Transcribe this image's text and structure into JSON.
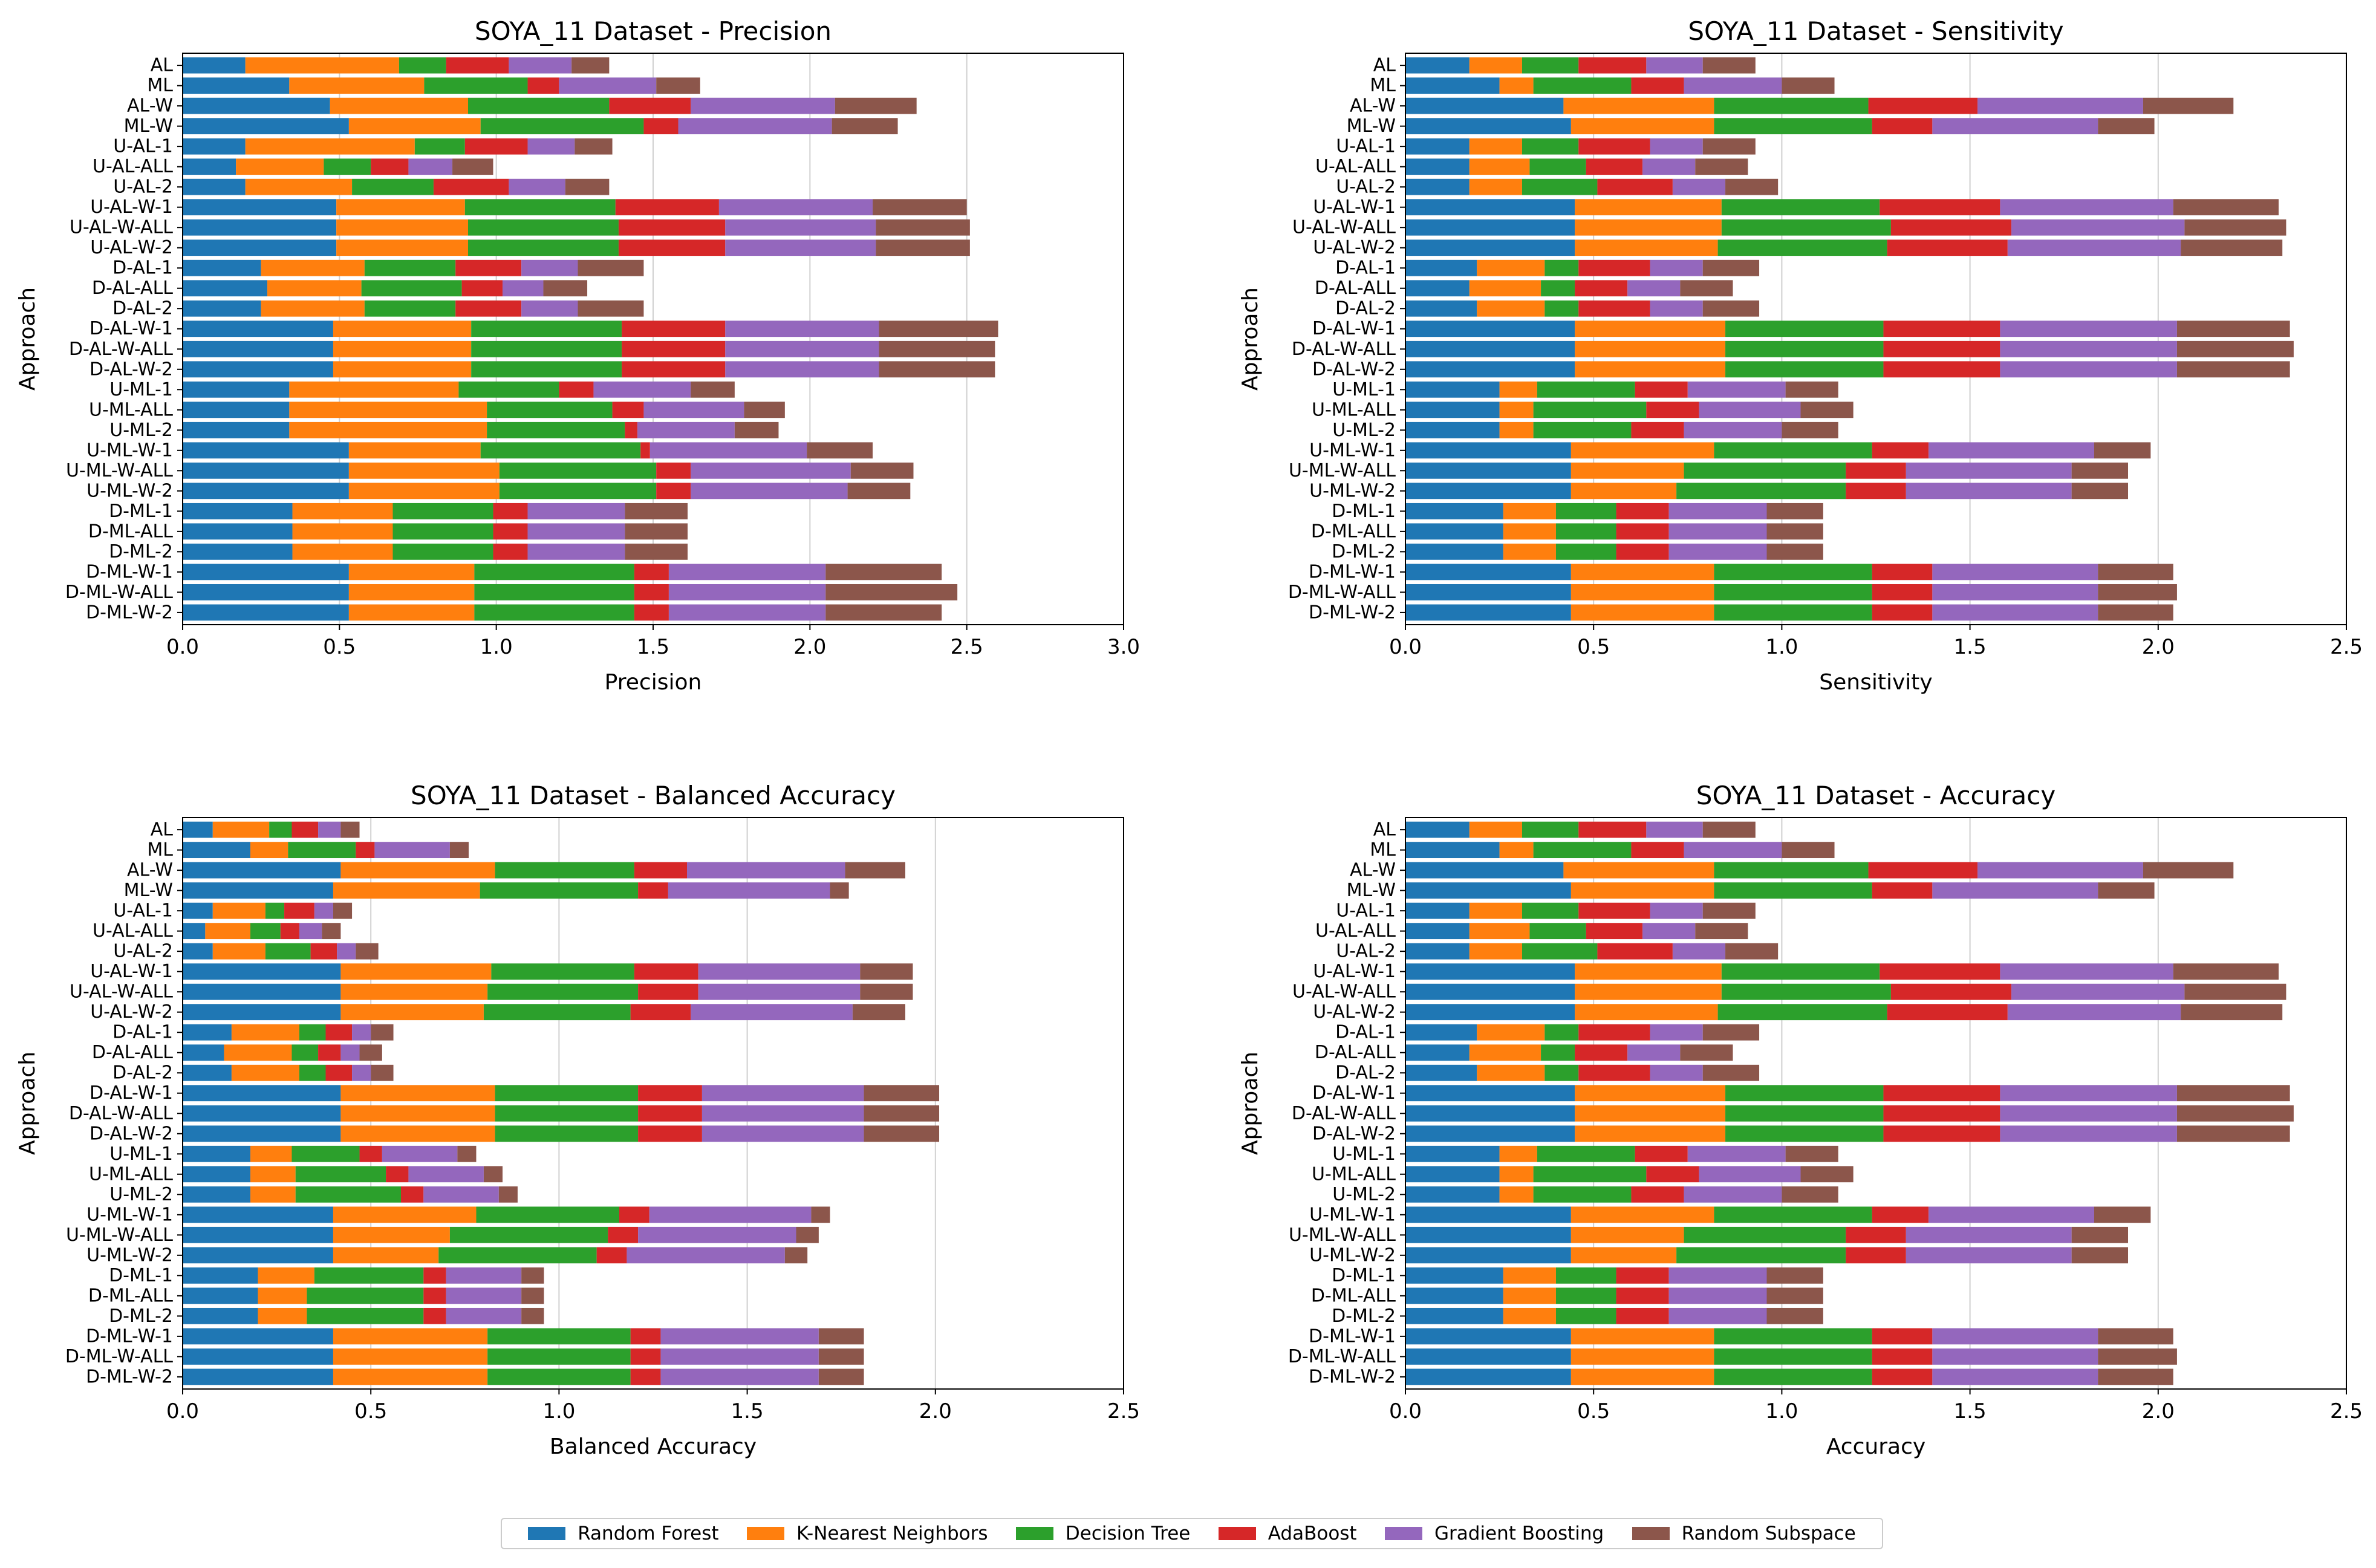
{
  "figure": {
    "categories": [
      "D-ML-W-2",
      "D-ML-W-ALL",
      "D-ML-W-1",
      "D-ML-2",
      "D-ML-ALL",
      "D-ML-1",
      "U-ML-W-2",
      "U-ML-W-ALL",
      "U-ML-W-1",
      "U-ML-2",
      "U-ML-ALL",
      "U-ML-1",
      "D-AL-W-2",
      "D-AL-W-ALL",
      "D-AL-W-1",
      "D-AL-2",
      "D-AL-ALL",
      "D-AL-1",
      "U-AL-W-2",
      "U-AL-W-ALL",
      "U-AL-W-1",
      "U-AL-2",
      "U-AL-ALL",
      "U-AL-1",
      "ML-W",
      "AL-W",
      "ML",
      "AL"
    ],
    "series_names": [
      "Random Forest",
      "K-Nearest Neighbors",
      "Decision Tree",
      "AdaBoost",
      "Gradient Boosting",
      "Random Subspace"
    ],
    "colors": [
      "#1f77b4",
      "#ff7f0e",
      "#2ca02c",
      "#d62728",
      "#9467bd",
      "#8c564b"
    ]
  },
  "chart_data": [
    {
      "type": "bar",
      "orientation": "horizontal",
      "stacked": true,
      "title": "SOYA_11 Dataset - Precision",
      "xlabel": "Precision",
      "ylabel": "Approach",
      "xlim": [
        0,
        3.0
      ],
      "xticks": [
        0,
        0.5,
        1.0,
        1.5,
        2.0,
        2.5,
        3.0
      ],
      "xtick_labels": [
        "0.0",
        "0.5",
        "1.0",
        "1.5",
        "2.0",
        "2.5",
        "3.0"
      ],
      "grid": "x",
      "series": [
        {
          "name": "Random Forest",
          "values": [
            0.53,
            0.53,
            0.53,
            0.35,
            0.35,
            0.35,
            0.53,
            0.53,
            0.53,
            0.34,
            0.34,
            0.34,
            0.48,
            0.48,
            0.48,
            0.25,
            0.27,
            0.25,
            0.49,
            0.49,
            0.49,
            0.2,
            0.17,
            0.2,
            0.53,
            0.47,
            0.34,
            0.2
          ]
        },
        {
          "name": "K-Nearest Neighbors",
          "values": [
            0.4,
            0.4,
            0.4,
            0.32,
            0.32,
            0.32,
            0.48,
            0.48,
            0.42,
            0.63,
            0.63,
            0.54,
            0.44,
            0.44,
            0.44,
            0.33,
            0.3,
            0.33,
            0.42,
            0.42,
            0.41,
            0.34,
            0.28,
            0.54,
            0.42,
            0.44,
            0.43,
            0.49
          ]
        },
        {
          "name": "Decision Tree",
          "values": [
            0.51,
            0.51,
            0.51,
            0.32,
            0.32,
            0.32,
            0.5,
            0.5,
            0.51,
            0.44,
            0.4,
            0.32,
            0.48,
            0.48,
            0.48,
            0.29,
            0.32,
            0.29,
            0.48,
            0.48,
            0.48,
            0.26,
            0.15,
            0.16,
            0.52,
            0.45,
            0.33,
            0.15
          ]
        },
        {
          "name": "AdaBoost",
          "values": [
            0.11,
            0.11,
            0.11,
            0.11,
            0.11,
            0.11,
            0.11,
            0.11,
            0.03,
            0.04,
            0.1,
            0.11,
            0.33,
            0.33,
            0.33,
            0.21,
            0.13,
            0.21,
            0.34,
            0.34,
            0.33,
            0.24,
            0.12,
            0.2,
            0.11,
            0.26,
            0.1,
            0.2
          ]
        },
        {
          "name": "Gradient Boosting",
          "values": [
            0.5,
            0.5,
            0.5,
            0.31,
            0.31,
            0.31,
            0.5,
            0.51,
            0.5,
            0.31,
            0.32,
            0.31,
            0.49,
            0.49,
            0.49,
            0.18,
            0.13,
            0.18,
            0.48,
            0.48,
            0.49,
            0.18,
            0.14,
            0.15,
            0.49,
            0.46,
            0.31,
            0.2
          ]
        },
        {
          "name": "Random Subspace",
          "values": [
            0.37,
            0.42,
            0.37,
            0.2,
            0.2,
            0.2,
            0.2,
            0.2,
            0.21,
            0.14,
            0.13,
            0.14,
            0.37,
            0.37,
            0.38,
            0.21,
            0.14,
            0.21,
            0.3,
            0.3,
            0.3,
            0.14,
            0.13,
            0.12,
            0.21,
            0.26,
            0.14,
            0.12
          ]
        }
      ]
    },
    {
      "type": "bar",
      "orientation": "horizontal",
      "stacked": true,
      "title": "SOYA_11 Dataset - Sensitivity",
      "xlabel": "Sensitivity",
      "ylabel": "Approach",
      "xlim": [
        0,
        2.5
      ],
      "xticks": [
        0,
        0.5,
        1.0,
        1.5,
        2.0,
        2.5
      ],
      "xtick_labels": [
        "0.0",
        "0.5",
        "1.0",
        "1.5",
        "2.0",
        "2.5"
      ],
      "grid": "x",
      "series": [
        {
          "name": "Random Forest",
          "values": [
            0.44,
            0.44,
            0.44,
            0.26,
            0.26,
            0.26,
            0.44,
            0.44,
            0.44,
            0.25,
            0.25,
            0.25,
            0.45,
            0.45,
            0.45,
            0.19,
            0.17,
            0.19,
            0.45,
            0.45,
            0.45,
            0.17,
            0.17,
            0.17,
            0.44,
            0.42,
            0.25,
            0.17
          ]
        },
        {
          "name": "K-Nearest Neighbors",
          "values": [
            0.38,
            0.38,
            0.38,
            0.14,
            0.14,
            0.14,
            0.28,
            0.3,
            0.38,
            0.09,
            0.09,
            0.1,
            0.4,
            0.4,
            0.4,
            0.18,
            0.19,
            0.18,
            0.38,
            0.39,
            0.39,
            0.14,
            0.16,
            0.14,
            0.38,
            0.4,
            0.09,
            0.14
          ]
        },
        {
          "name": "Decision Tree",
          "values": [
            0.42,
            0.42,
            0.42,
            0.16,
            0.16,
            0.16,
            0.45,
            0.43,
            0.42,
            0.26,
            0.3,
            0.26,
            0.42,
            0.42,
            0.42,
            0.09,
            0.09,
            0.09,
            0.45,
            0.45,
            0.42,
            0.2,
            0.15,
            0.15,
            0.42,
            0.41,
            0.26,
            0.15
          ]
        },
        {
          "name": "AdaBoost",
          "values": [
            0.16,
            0.16,
            0.16,
            0.14,
            0.14,
            0.14,
            0.16,
            0.16,
            0.15,
            0.14,
            0.14,
            0.14,
            0.31,
            0.31,
            0.31,
            0.19,
            0.14,
            0.19,
            0.32,
            0.32,
            0.32,
            0.2,
            0.15,
            0.19,
            0.16,
            0.29,
            0.14,
            0.18
          ]
        },
        {
          "name": "Gradient Boosting",
          "values": [
            0.44,
            0.44,
            0.44,
            0.26,
            0.26,
            0.26,
            0.44,
            0.44,
            0.44,
            0.26,
            0.27,
            0.26,
            0.47,
            0.47,
            0.47,
            0.14,
            0.14,
            0.14,
            0.46,
            0.46,
            0.46,
            0.14,
            0.14,
            0.14,
            0.44,
            0.44,
            0.26,
            0.15
          ]
        },
        {
          "name": "Random Subspace",
          "values": [
            0.2,
            0.21,
            0.2,
            0.15,
            0.15,
            0.15,
            0.15,
            0.15,
            0.15,
            0.15,
            0.14,
            0.14,
            0.3,
            0.31,
            0.3,
            0.15,
            0.14,
            0.15,
            0.27,
            0.27,
            0.28,
            0.14,
            0.14,
            0.14,
            0.15,
            0.24,
            0.14,
            0.14
          ]
        }
      ]
    },
    {
      "type": "bar",
      "orientation": "horizontal",
      "stacked": true,
      "title": "SOYA_11 Dataset - Balanced Accuracy",
      "xlabel": "Balanced Accuracy",
      "ylabel": "Approach",
      "xlim": [
        0,
        2.5
      ],
      "xticks": [
        0,
        0.5,
        1.0,
        1.5,
        2.0,
        2.5
      ],
      "xtick_labels": [
        "0.0",
        "0.5",
        "1.0",
        "1.5",
        "2.0",
        "2.5"
      ],
      "grid": "x",
      "series": [
        {
          "name": "Random Forest",
          "values": [
            0.4,
            0.4,
            0.4,
            0.2,
            0.2,
            0.2,
            0.4,
            0.4,
            0.4,
            0.18,
            0.18,
            0.18,
            0.42,
            0.42,
            0.42,
            0.13,
            0.11,
            0.13,
            0.42,
            0.42,
            0.42,
            0.08,
            0.06,
            0.08,
            0.4,
            0.42,
            0.18,
            0.08
          ]
        },
        {
          "name": "K-Nearest Neighbors",
          "values": [
            0.41,
            0.41,
            0.41,
            0.13,
            0.13,
            0.15,
            0.28,
            0.31,
            0.38,
            0.12,
            0.12,
            0.11,
            0.41,
            0.41,
            0.41,
            0.18,
            0.18,
            0.18,
            0.38,
            0.39,
            0.4,
            0.14,
            0.12,
            0.14,
            0.39,
            0.41,
            0.1,
            0.15
          ]
        },
        {
          "name": "Decision Tree",
          "values": [
            0.38,
            0.38,
            0.38,
            0.31,
            0.31,
            0.29,
            0.42,
            0.42,
            0.38,
            0.28,
            0.24,
            0.18,
            0.38,
            0.38,
            0.38,
            0.07,
            0.07,
            0.07,
            0.39,
            0.4,
            0.38,
            0.12,
            0.08,
            0.05,
            0.42,
            0.37,
            0.18,
            0.06
          ]
        },
        {
          "name": "AdaBoost",
          "values": [
            0.08,
            0.08,
            0.08,
            0.06,
            0.06,
            0.06,
            0.08,
            0.08,
            0.08,
            0.06,
            0.06,
            0.06,
            0.17,
            0.17,
            0.17,
            0.07,
            0.06,
            0.07,
            0.16,
            0.16,
            0.17,
            0.07,
            0.05,
            0.08,
            0.08,
            0.14,
            0.05,
            0.07
          ]
        },
        {
          "name": "Gradient Boosting",
          "values": [
            0.42,
            0.42,
            0.42,
            0.2,
            0.2,
            0.2,
            0.42,
            0.42,
            0.43,
            0.2,
            0.2,
            0.2,
            0.43,
            0.43,
            0.43,
            0.05,
            0.05,
            0.05,
            0.43,
            0.43,
            0.43,
            0.05,
            0.06,
            0.05,
            0.43,
            0.42,
            0.2,
            0.06
          ]
        },
        {
          "name": "Random Subspace",
          "values": [
            0.12,
            0.12,
            0.12,
            0.06,
            0.06,
            0.06,
            0.06,
            0.06,
            0.05,
            0.05,
            0.05,
            0.05,
            0.2,
            0.2,
            0.2,
            0.06,
            0.06,
            0.06,
            0.14,
            0.14,
            0.14,
            0.06,
            0.05,
            0.05,
            0.05,
            0.16,
            0.05,
            0.05
          ]
        }
      ]
    },
    {
      "type": "bar",
      "orientation": "horizontal",
      "stacked": true,
      "title": "SOYA_11 Dataset - Accuracy",
      "xlabel": "Accuracy",
      "ylabel": "Approach",
      "xlim": [
        0,
        2.5
      ],
      "xticks": [
        0,
        0.5,
        1.0,
        1.5,
        2.0,
        2.5
      ],
      "xtick_labels": [
        "0.0",
        "0.5",
        "1.0",
        "1.5",
        "2.0",
        "2.5"
      ],
      "grid": "x",
      "series": [
        {
          "name": "Random Forest",
          "values": [
            0.44,
            0.44,
            0.44,
            0.26,
            0.26,
            0.26,
            0.44,
            0.44,
            0.44,
            0.25,
            0.25,
            0.25,
            0.45,
            0.45,
            0.45,
            0.19,
            0.17,
            0.19,
            0.45,
            0.45,
            0.45,
            0.17,
            0.17,
            0.17,
            0.44,
            0.42,
            0.25,
            0.17
          ]
        },
        {
          "name": "K-Nearest Neighbors",
          "values": [
            0.38,
            0.38,
            0.38,
            0.14,
            0.14,
            0.14,
            0.28,
            0.3,
            0.38,
            0.09,
            0.09,
            0.1,
            0.4,
            0.4,
            0.4,
            0.18,
            0.19,
            0.18,
            0.38,
            0.39,
            0.39,
            0.14,
            0.16,
            0.14,
            0.38,
            0.4,
            0.09,
            0.14
          ]
        },
        {
          "name": "Decision Tree",
          "values": [
            0.42,
            0.42,
            0.42,
            0.16,
            0.16,
            0.16,
            0.45,
            0.43,
            0.42,
            0.26,
            0.3,
            0.26,
            0.42,
            0.42,
            0.42,
            0.09,
            0.09,
            0.09,
            0.45,
            0.45,
            0.42,
            0.2,
            0.15,
            0.15,
            0.42,
            0.41,
            0.26,
            0.15
          ]
        },
        {
          "name": "AdaBoost",
          "values": [
            0.16,
            0.16,
            0.16,
            0.14,
            0.14,
            0.14,
            0.16,
            0.16,
            0.15,
            0.14,
            0.14,
            0.14,
            0.31,
            0.31,
            0.31,
            0.19,
            0.14,
            0.19,
            0.32,
            0.32,
            0.32,
            0.2,
            0.15,
            0.19,
            0.16,
            0.29,
            0.14,
            0.18
          ]
        },
        {
          "name": "Gradient Boosting",
          "values": [
            0.44,
            0.44,
            0.44,
            0.26,
            0.26,
            0.26,
            0.44,
            0.44,
            0.44,
            0.26,
            0.27,
            0.26,
            0.47,
            0.47,
            0.47,
            0.14,
            0.14,
            0.14,
            0.46,
            0.46,
            0.46,
            0.14,
            0.14,
            0.14,
            0.44,
            0.44,
            0.26,
            0.15
          ]
        },
        {
          "name": "Random Subspace",
          "values": [
            0.2,
            0.21,
            0.2,
            0.15,
            0.15,
            0.15,
            0.15,
            0.15,
            0.15,
            0.15,
            0.14,
            0.14,
            0.3,
            0.31,
            0.3,
            0.15,
            0.14,
            0.15,
            0.27,
            0.27,
            0.28,
            0.14,
            0.14,
            0.14,
            0.15,
            0.24,
            0.14,
            0.14
          ]
        }
      ]
    }
  ]
}
